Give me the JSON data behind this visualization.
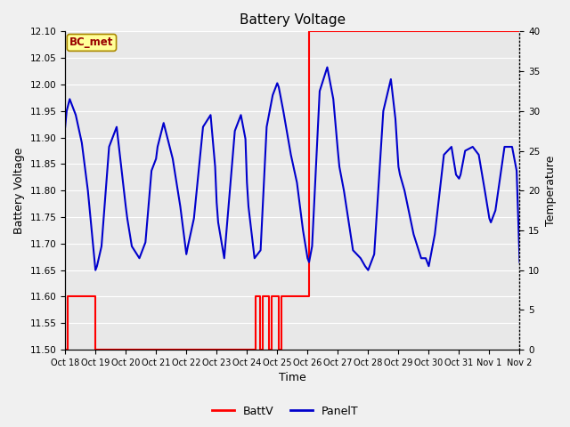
{
  "title": "Battery Voltage",
  "xlabel": "Time",
  "ylabel_left": "Battery Voltage",
  "ylabel_right": "Temperature",
  "ylim_left": [
    11.5,
    12.1
  ],
  "ylim_right": [
    0,
    40
  ],
  "yticks_left": [
    11.5,
    11.55,
    11.6,
    11.65,
    11.7,
    11.75,
    11.8,
    11.85,
    11.9,
    11.95,
    12.0,
    12.05,
    12.1
  ],
  "yticks_right": [
    0,
    5,
    10,
    15,
    20,
    25,
    30,
    35,
    40
  ],
  "xtick_labels": [
    "Oct 18",
    "Oct 19",
    "Oct 20",
    "Oct 21",
    "Oct 22",
    "Oct 23",
    "Oct 24",
    "Oct 25",
    "Oct 26",
    "Oct 27",
    "Oct 28",
    "Oct 29",
    "Oct 30",
    "Oct 31",
    "Nov 1",
    "Nov 2"
  ],
  "background_color": "#f0f0f0",
  "plot_bg_color": "#e8e8e8",
  "grid_color": "#ffffff",
  "battv_color": "#ff0000",
  "panelt_color": "#0000cc",
  "annotation_text": "BC_met",
  "annotation_box_color": "#ffff99",
  "annotation_text_color": "#990000",
  "legend_battv": "BattV",
  "legend_panelt": "PanelT",
  "panelt_data_x": [
    0.0,
    0.05,
    0.15,
    0.35,
    0.55,
    0.75,
    0.9,
    1.0,
    1.05,
    1.2,
    1.45,
    1.7,
    1.85,
    2.0,
    2.05,
    2.2,
    2.45,
    2.65,
    2.85,
    3.0,
    3.05,
    3.25,
    3.55,
    3.8,
    3.95,
    4.0,
    4.05,
    4.25,
    4.55,
    4.8,
    4.95,
    5.0,
    5.05,
    5.25,
    5.6,
    5.8,
    5.95,
    6.0,
    6.05,
    6.25,
    6.45,
    6.65,
    6.85,
    7.0,
    7.05,
    7.2,
    7.45,
    7.65,
    7.85,
    8.0,
    8.05,
    8.15,
    8.4,
    8.65,
    8.85,
    9.0,
    9.05,
    9.2,
    9.5,
    9.75,
    9.9,
    10.0,
    10.05,
    10.2,
    10.5,
    10.75,
    10.9,
    11.0,
    11.05,
    11.2,
    11.5,
    11.75,
    11.9,
    12.0,
    12.05,
    12.2,
    12.5,
    12.75,
    12.9,
    13.0,
    13.05,
    13.2,
    13.45,
    13.65,
    13.85,
    14.0,
    14.05,
    14.2,
    14.5,
    14.75,
    14.9,
    15.0
  ],
  "panelt_data_y": [
    28.0,
    30.0,
    31.5,
    29.5,
    26.0,
    20.0,
    14.0,
    10.0,
    10.5,
    13.0,
    25.5,
    28.0,
    23.0,
    18.0,
    16.5,
    13.0,
    11.5,
    13.5,
    22.5,
    24.0,
    25.5,
    28.5,
    24.0,
    18.0,
    13.5,
    12.0,
    13.0,
    16.5,
    28.0,
    29.5,
    23.0,
    18.5,
    16.0,
    11.5,
    27.5,
    29.5,
    26.5,
    21.0,
    18.0,
    11.5,
    12.5,
    28.0,
    32.0,
    33.5,
    33.0,
    30.0,
    24.5,
    21.0,
    15.0,
    11.5,
    11.0,
    13.0,
    32.5,
    35.5,
    31.5,
    25.0,
    23.0,
    20.0,
    12.5,
    11.5,
    10.5,
    10.0,
    10.5,
    12.0,
    30.0,
    34.0,
    29.0,
    23.0,
    22.0,
    20.0,
    14.5,
    11.5,
    11.5,
    10.5,
    11.5,
    14.5,
    24.5,
    25.5,
    22.0,
    21.5,
    22.0,
    25.0,
    25.5,
    24.5,
    20.0,
    16.5,
    16.0,
    17.5,
    25.5,
    25.5,
    22.5,
    11.0
  ],
  "battv_x": [
    0.0,
    0.0,
    0.07,
    0.07,
    1.0,
    1.0,
    6.3,
    6.3,
    6.42,
    6.42,
    6.52,
    6.52,
    6.72,
    6.72,
    6.82,
    6.82,
    7.05,
    7.05,
    7.15,
    7.15,
    8.05,
    8.05,
    15.0
  ],
  "battv_y": [
    11.6,
    11.5,
    11.5,
    11.6,
    11.6,
    11.5,
    11.5,
    11.6,
    11.6,
    11.5,
    11.5,
    11.6,
    11.6,
    11.5,
    11.5,
    11.6,
    11.6,
    11.5,
    11.5,
    11.6,
    11.6,
    12.1,
    12.1
  ]
}
